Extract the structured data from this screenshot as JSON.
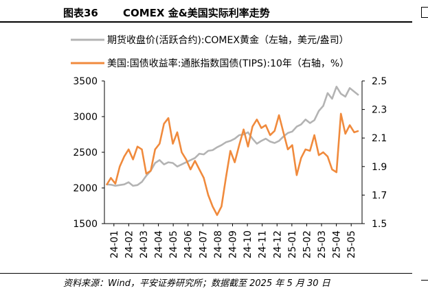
{
  "figure": {
    "number": "图表36",
    "title": "COMEX 金&美国实际利率走势",
    "source": "资料来源：Wind，平安证券研究所；数据截至 2025 年 5 月 30 日"
  },
  "chart_data": {
    "type": "line",
    "title": "COMEX 金&美国实际利率走势",
    "x_labels": [
      "24-01",
      "24-02",
      "24-03",
      "24-04",
      "24-05",
      "24-06",
      "24-07",
      "24-08",
      "24-09",
      "24-10",
      "24-11",
      "24-12",
      "25-01",
      "25-02",
      "25-03",
      "25-04",
      "25-05"
    ],
    "y_left": {
      "min": 1500,
      "max": 3500,
      "ticks": [
        "1500",
        "2000",
        "2500",
        "3000",
        "3500"
      ]
    },
    "y_right": {
      "min": 1.5,
      "max": 2.5,
      "ticks": [
        "1.5",
        "1.7",
        "1.9",
        "2.1",
        "2.3",
        "2.5"
      ]
    },
    "series": [
      {
        "name": "期货收盘价(活跃合约):COMEX黄金（左轴，美元/盎司）",
        "axis": "left",
        "color": "#b3b3b3",
        "values": [
          2050,
          2045,
          2030,
          2040,
          2050,
          2080,
          2030,
          2040,
          2085,
          2170,
          2240,
          2350,
          2390,
          2330,
          2360,
          2350,
          2300,
          2330,
          2360,
          2390,
          2420,
          2480,
          2470,
          2520,
          2530,
          2570,
          2600,
          2640,
          2660,
          2690,
          2740,
          2750,
          2780,
          2690,
          2620,
          2660,
          2690,
          2650,
          2630,
          2660,
          2720,
          2770,
          2790,
          2860,
          2890,
          2960,
          2910,
          2950,
          3080,
          3150,
          3330,
          3250,
          3420,
          3320,
          3280,
          3400,
          3350,
          3300
        ]
      },
      {
        "name": "美国:国债收益率:通胀指数国债(TIPS):10年（右轴，%）",
        "axis": "right",
        "color": "#f08a3c",
        "values": [
          1.77,
          1.82,
          1.78,
          1.9,
          1.97,
          2.02,
          1.95,
          2.04,
          2.02,
          1.85,
          1.87,
          2.02,
          2.06,
          2.2,
          2.24,
          2.06,
          2.14,
          2.0,
          1.95,
          1.88,
          1.94,
          1.88,
          1.82,
          1.7,
          1.62,
          1.56,
          1.62,
          1.82,
          2.01,
          1.93,
          2.05,
          2.16,
          2.04,
          2.18,
          2.23,
          2.17,
          2.19,
          2.12,
          2.15,
          2.26,
          2.14,
          2.02,
          2.05,
          1.84,
          1.96,
          2.02,
          2.01,
          2.12,
          1.98,
          2.0,
          1.97,
          1.88,
          1.86,
          2.27,
          2.13,
          2.19,
          2.14,
          2.15
        ]
      }
    ]
  }
}
